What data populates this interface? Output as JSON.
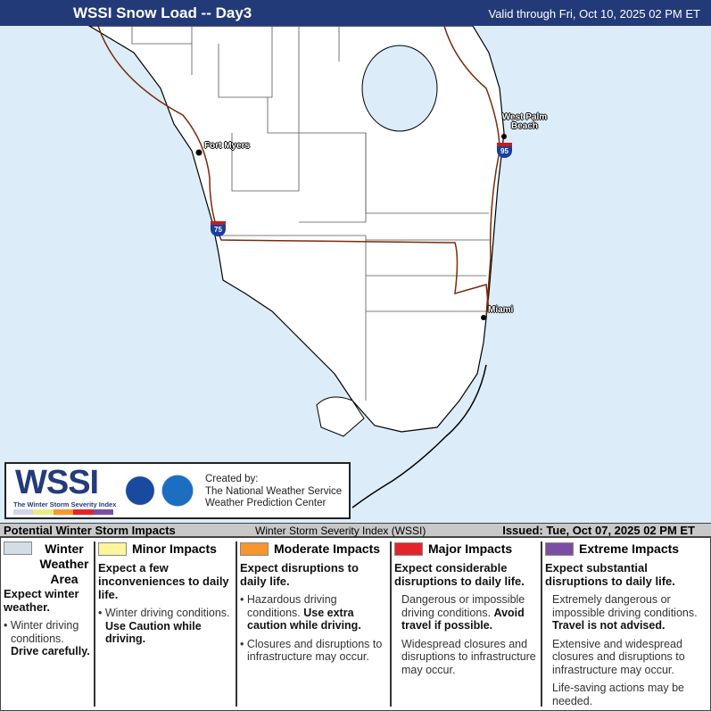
{
  "header": {
    "title": "WSSI Snow Load -- Day3",
    "valid": "Valid through Fri, Oct 10, 2025 02 PM ET",
    "background": "#223a78"
  },
  "map": {
    "water_color": "#dcecf8",
    "land_color": "#ffffff",
    "cities": [
      {
        "name": "Fort Myers"
      },
      {
        "name": "West Palm Beach"
      },
      {
        "name": "Miami"
      }
    ],
    "highways": [
      {
        "label": "75"
      },
      {
        "label": "95"
      }
    ]
  },
  "logo": {
    "wssi": "WSSI",
    "wssi_sub": "The Winter Storm Severity Index",
    "credit_lines": [
      "Created by:",
      "The National Weather Service",
      "Weather Prediction Center"
    ]
  },
  "legend": {
    "title": "Potential Winter Storm Impacts",
    "index_name": "Winter Storm Severity Index (WSSI)",
    "issued": "Issued: Tue, Oct 07, 2025 02 PM ET",
    "categories": [
      {
        "name": "Winter Weather Area",
        "color": "#d3dde6",
        "desc": "Expect winter weather.",
        "bullets": [
          {
            "text": "Winter driving conditions. ",
            "bold": "Drive carefully."
          }
        ]
      },
      {
        "name": "Minor Impacts",
        "color": "#fbf59b",
        "desc": "Expect a few inconveniences to daily life.",
        "bullets": [
          {
            "text": "Winter driving conditions. ",
            "bold": "Use Caution while driving."
          }
        ]
      },
      {
        "name": "Moderate Impacts",
        "color": "#f7962f",
        "desc": "Expect disruptions to daily life.",
        "bullets": [
          {
            "text": "Hazardous driving conditions. ",
            "bold": "Use extra caution while driving."
          },
          {
            "text": "Closures and disruptions to infrastructure may occur.",
            "bold": ""
          }
        ]
      },
      {
        "name": "Major Impacts",
        "color": "#e3242b",
        "desc": "Expect considerable disruptions to daily life.",
        "bullets": [
          {
            "text": "Dangerous or impossible driving conditions. ",
            "bold": "Avoid travel if possible."
          },
          {
            "text": "Widespread closures and disruptions to infrastructure may occur.",
            "bold": ""
          }
        ]
      },
      {
        "name": "Extreme Impacts",
        "color": "#7b4ea3",
        "desc": "Expect substantial disruptions to daily life.",
        "bullets": [
          {
            "text": "Extremely dangerous or impossible driving conditions. ",
            "bold": "Travel is not advised."
          },
          {
            "text": "Extensive and widespread closures and disruptions to infrastructure may occur.",
            "bold": ""
          },
          {
            "text": "Life-saving actions may be needed.",
            "bold": ""
          }
        ]
      }
    ]
  }
}
